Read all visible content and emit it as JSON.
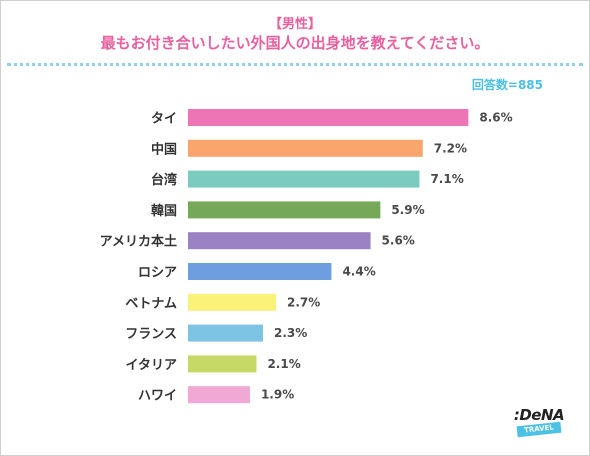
{
  "header": {
    "subtitle": "【男性】",
    "title": "最もお付き合いしたい外国人の出身地を教えてください。",
    "sample_size": "回答数=885"
  },
  "chart_data": {
    "type": "bar",
    "orientation": "horizontal",
    "categories": [
      "タイ",
      "中国",
      "台湾",
      "韓国",
      "アメリカ本土",
      "ロシア",
      "ベトナム",
      "フランス",
      "イタリア",
      "ハワイ"
    ],
    "values": [
      8.6,
      7.2,
      7.1,
      5.9,
      5.6,
      4.4,
      2.7,
      2.3,
      2.1,
      1.9
    ],
    "value_labels": [
      "8.6%",
      "7.2%",
      "7.1%",
      "5.9%",
      "5.6%",
      "4.4%",
      "2.7%",
      "2.3%",
      "2.1%",
      "1.9%"
    ],
    "colors": [
      "#ee75b5",
      "#f9a56b",
      "#7ccbc0",
      "#75a957",
      "#9a82c4",
      "#6f9ee0",
      "#fbf27a",
      "#7cc3e4",
      "#c6d865",
      "#f0a8d5"
    ],
    "xlim": [
      0,
      10
    ],
    "grid": false,
    "legend": "none"
  },
  "logo": {
    "main": ":DeNA",
    "tag": "TRAVEL"
  }
}
